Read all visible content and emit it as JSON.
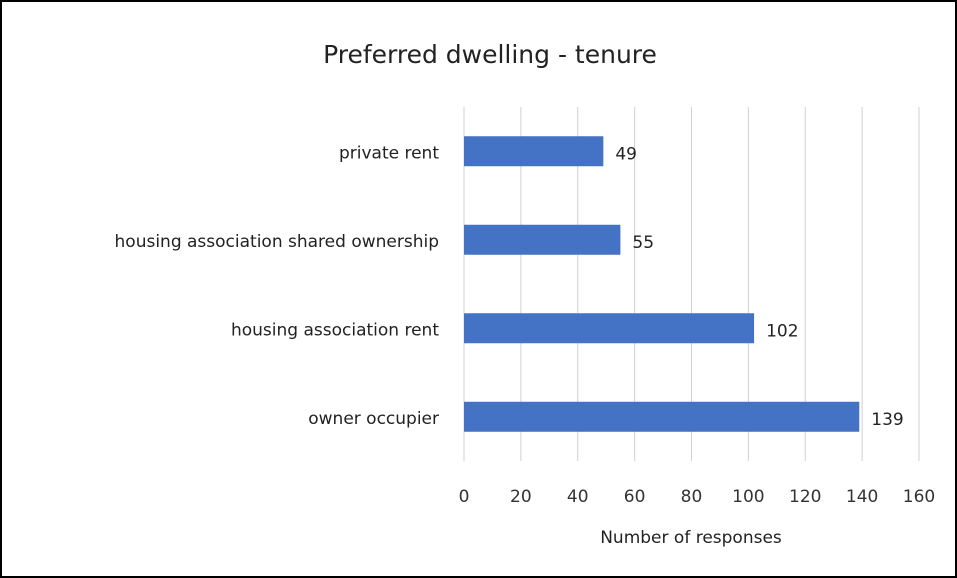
{
  "chart_data": {
    "type": "bar",
    "orientation": "horizontal",
    "title": "Preferred dwelling - tenure",
    "x_label": "Number of responses",
    "categories": [
      "private rent",
      "housing association shared ownership",
      "housing association rent",
      "owner occupier"
    ],
    "values": [
      49,
      55,
      102,
      139
    ],
    "color": "#4472c4",
    "xlim": [
      0,
      160
    ],
    "xticks": [
      0,
      20,
      40,
      60,
      80,
      100,
      120,
      140,
      160
    ],
    "grid": true
  }
}
